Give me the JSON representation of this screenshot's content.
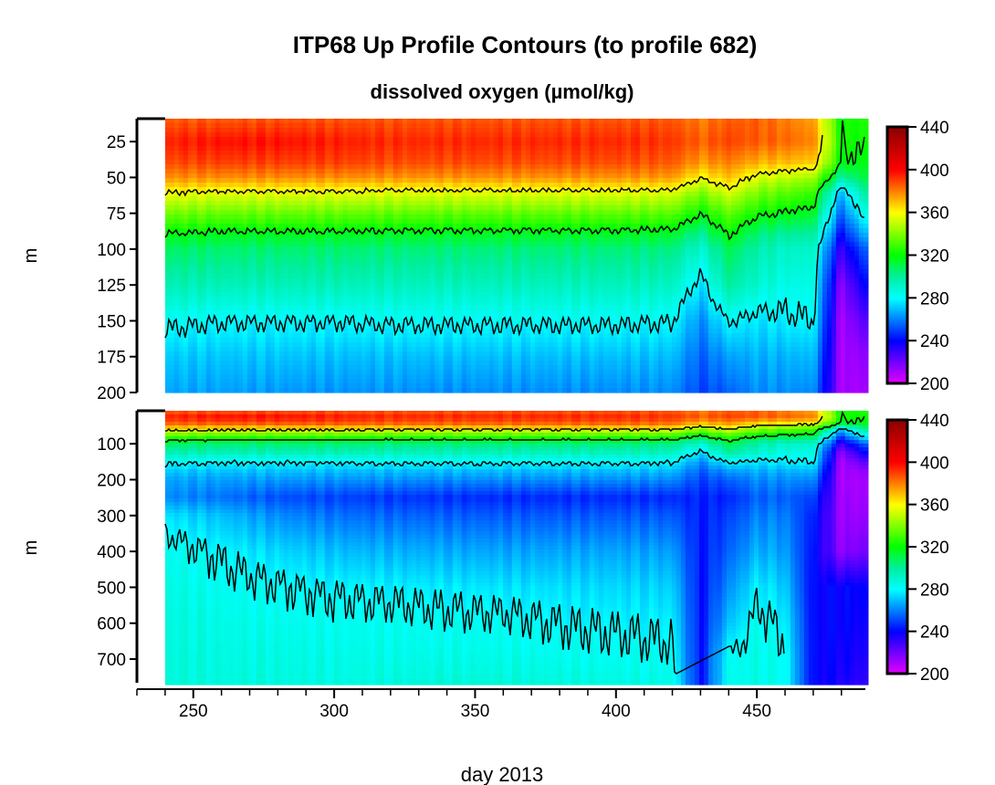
{
  "chart_data": {
    "type": "heatmap",
    "title": "ITP68 Up Profile Contours (to profile 682)",
    "subtitle": "dissolved oxygen (µmol/kg)",
    "xlabel": "day 2013",
    "ylabel": "m",
    "xlim": [
      230,
      488.5
    ],
    "xticks": [
      250,
      300,
      350,
      400,
      450
    ],
    "panels": [
      {
        "name": "upper",
        "ylim": [
          9,
          200
        ],
        "yticks": [
          25,
          50,
          75,
          100,
          125,
          150,
          175,
          200
        ],
        "contour_levels": [
          360,
          320,
          280
        ]
      },
      {
        "name": "lower",
        "ylim": [
          8,
          766
        ],
        "yticks": [
          100,
          200,
          300,
          400,
          500,
          600,
          700
        ],
        "contour_levels": [
          360,
          320,
          280
        ]
      }
    ],
    "colorbar": {
      "range": [
        200,
        440
      ],
      "ticks": [
        200,
        240,
        280,
        320,
        360,
        400,
        440
      ],
      "stops": [
        [
          200,
          "#e600ff"
        ],
        [
          240,
          "#0000ff"
        ],
        [
          280,
          "#00ffff"
        ],
        [
          300,
          "#00eea0"
        ],
        [
          320,
          "#00ff00"
        ],
        [
          360,
          "#ffff00"
        ],
        [
          400,
          "#ff0000"
        ],
        [
          440,
          "#8b0000"
        ]
      ]
    },
    "depths": [
      8,
      25,
      40,
      50,
      60,
      75,
      90,
      100,
      125,
      150,
      175,
      200,
      250,
      300,
      400,
      500,
      600,
      700,
      766
    ],
    "days": [
      240,
      260,
      280,
      300,
      320,
      340,
      360,
      380,
      400,
      420,
      430,
      440,
      450,
      460,
      470,
      480,
      488
    ],
    "values": [
      [
        385,
        395,
        388,
        378,
        360,
        338,
        318,
        308,
        296,
        282,
        272,
        266,
        262,
        276,
        284,
        286,
        287,
        288,
        288
      ],
      [
        385,
        398,
        390,
        378,
        358,
        336,
        316,
        306,
        295,
        280,
        271,
        265,
        258,
        270,
        279,
        283,
        285,
        286,
        287
      ],
      [
        386,
        398,
        390,
        378,
        358,
        336,
        316,
        306,
        295,
        280,
        271,
        264,
        252,
        262,
        274,
        281,
        284,
        286,
        287
      ],
      [
        386,
        396,
        390,
        378,
        358,
        336,
        316,
        306,
        295,
        280,
        270,
        263,
        250,
        258,
        270,
        279,
        283,
        285,
        286
      ],
      [
        386,
        394,
        388,
        377,
        357,
        335,
        315,
        305,
        294,
        281,
        270,
        263,
        248,
        256,
        268,
        278,
        283,
        285,
        287
      ],
      [
        386,
        394,
        388,
        377,
        357,
        335,
        315,
        305,
        294,
        281,
        270,
        262,
        247,
        255,
        267,
        277,
        282,
        285,
        288
      ],
      [
        386,
        394,
        388,
        377,
        357,
        335,
        315,
        305,
        294,
        281,
        270,
        262,
        246,
        254,
        266,
        276,
        282,
        285,
        288
      ],
      [
        386,
        394,
        388,
        377,
        357,
        335,
        315,
        305,
        294,
        281,
        270,
        262,
        246,
        254,
        266,
        275,
        280,
        284,
        287
      ],
      [
        386,
        394,
        388,
        377,
        357,
        335,
        315,
        305,
        294,
        281,
        270,
        262,
        246,
        254,
        266,
        274,
        279,
        283,
        286
      ],
      [
        386,
        392,
        386,
        376,
        356,
        334,
        314,
        304,
        293,
        280,
        270,
        262,
        246,
        254,
        265,
        273,
        278,
        282,
        285
      ],
      [
        380,
        385,
        375,
        360,
        340,
        320,
        300,
        290,
        275,
        262,
        255,
        250,
        245,
        244,
        243,
        242,
        242,
        242,
        242
      ],
      [
        385,
        390,
        380,
        370,
        355,
        335,
        320,
        310,
        300,
        280,
        265,
        255,
        245,
        250,
        255,
        262,
        270,
        282,
        283
      ],
      [
        385,
        386,
        372,
        355,
        340,
        322,
        305,
        298,
        290,
        276,
        268,
        262,
        255,
        260,
        268,
        278,
        283,
        285,
        285
      ],
      [
        380,
        384,
        370,
        350,
        335,
        318,
        300,
        292,
        285,
        278,
        268,
        262,
        255,
        260,
        265,
        272,
        278,
        282,
        282
      ],
      [
        375,
        380,
        368,
        345,
        330,
        315,
        300,
        292,
        286,
        280,
        270,
        262,
        250,
        245,
        242,
        240,
        240,
        240,
        240
      ],
      [
        320,
        322,
        318,
        300,
        270,
        255,
        240,
        230,
        215,
        210,
        210,
        210,
        212,
        212,
        215,
        240,
        240,
        238,
        236
      ],
      [
        325,
        322,
        318,
        312,
        300,
        285,
        268,
        255,
        240,
        225,
        215,
        212,
        212,
        214,
        220,
        240,
        238,
        235,
        232
      ]
    ]
  }
}
